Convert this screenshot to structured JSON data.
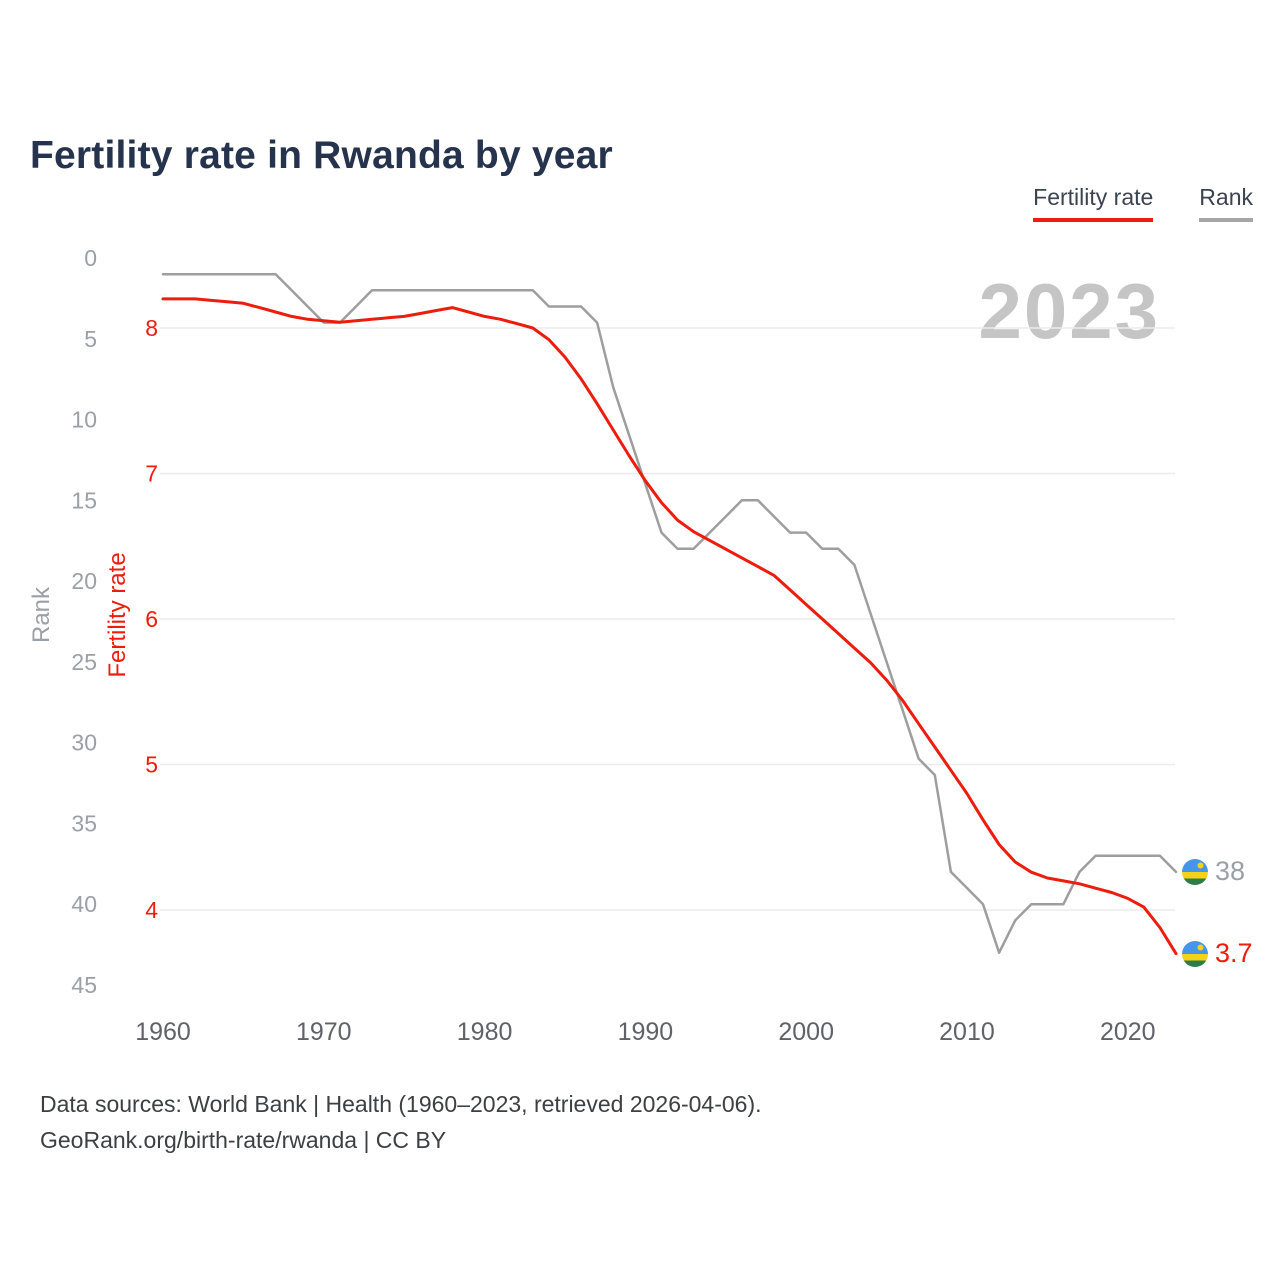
{
  "page": {
    "title": "Fertility rate in Rwanda by year",
    "watermark_year": "2023",
    "footer_line1": "Data sources: World Bank | Health (1960–2023, retrieved 2026-04-06).",
    "footer_line2": "GeoRank.org/birth-rate/rwanda | CC BY"
  },
  "legend": {
    "fertility_label": "Fertility rate",
    "rank_label": "Rank"
  },
  "axes": {
    "rank_axis_title": "Rank",
    "fertility_axis_title": "Fertility rate"
  },
  "end_labels": {
    "rank_value": "38",
    "fertility_value": "3.7"
  },
  "colors": {
    "fertility": "#ed1c0d",
    "rank": "#9e9e9e",
    "grid": "#ececec",
    "title": "#26334d",
    "watermark": "#c5c5c5"
  },
  "chart_data": {
    "type": "line",
    "title": "Fertility rate in Rwanda by year",
    "x_axis_label": "",
    "rank_axis": {
      "min": 0,
      "max": 45,
      "inverted": true
    },
    "fertility_axis": {
      "min_shown": 4,
      "max_shown": 8
    },
    "x_ticks": [
      1960,
      1970,
      1980,
      1990,
      2000,
      2010,
      2020
    ],
    "rank_ticks": [
      0,
      5,
      10,
      15,
      20,
      25,
      30,
      35,
      40,
      45
    ],
    "fertility_ticks": [
      8,
      7,
      6,
      5,
      4
    ],
    "final_year": 2023,
    "final_rank": 38,
    "final_fertility": 3.7,
    "x": [
      1960,
      1961,
      1962,
      1963,
      1964,
      1965,
      1966,
      1967,
      1968,
      1969,
      1970,
      1971,
      1972,
      1973,
      1974,
      1975,
      1976,
      1977,
      1978,
      1979,
      1980,
      1981,
      1982,
      1983,
      1984,
      1985,
      1986,
      1987,
      1988,
      1989,
      1990,
      1991,
      1992,
      1993,
      1994,
      1995,
      1996,
      1997,
      1998,
      1999,
      2000,
      2001,
      2002,
      2003,
      2004,
      2005,
      2006,
      2007,
      2008,
      2009,
      2010,
      2011,
      2012,
      2013,
      2014,
      2015,
      2016,
      2017,
      2018,
      2019,
      2020,
      2021,
      2022,
      2023
    ],
    "series": [
      {
        "name": "Fertility rate",
        "axis": "fertility",
        "color": "#ed1c0d",
        "values": [
          8.2,
          8.2,
          8.2,
          8.19,
          8.18,
          8.17,
          8.14,
          8.11,
          8.08,
          8.06,
          8.05,
          8.04,
          8.05,
          8.06,
          8.07,
          8.08,
          8.1,
          8.12,
          8.14,
          8.11,
          8.08,
          8.06,
          8.03,
          8.0,
          7.92,
          7.8,
          7.65,
          7.48,
          7.3,
          7.12,
          6.95,
          6.8,
          6.68,
          6.6,
          6.54,
          6.48,
          6.42,
          6.36,
          6.3,
          6.2,
          6.1,
          6.0,
          5.9,
          5.8,
          5.7,
          5.58,
          5.44,
          5.28,
          5.12,
          4.96,
          4.8,
          4.62,
          4.45,
          4.33,
          4.26,
          4.22,
          4.2,
          4.18,
          4.15,
          4.12,
          4.08,
          4.02,
          3.88,
          3.7
        ]
      },
      {
        "name": "Rank",
        "axis": "rank",
        "color": "#9e9e9e",
        "values": [
          1,
          1,
          1,
          1,
          1,
          1,
          1,
          1,
          2,
          3,
          4,
          4,
          3,
          2,
          2,
          2,
          2,
          2,
          2,
          2,
          2,
          2,
          2,
          2,
          3,
          3,
          3,
          4,
          8,
          11,
          14,
          17,
          18,
          18,
          17,
          16,
          15,
          15,
          16,
          17,
          17,
          18,
          18,
          19,
          22,
          25,
          28,
          31,
          32,
          38,
          39,
          40,
          43,
          41,
          40,
          40,
          40,
          38,
          37,
          37,
          37,
          37,
          37,
          38
        ]
      }
    ]
  }
}
